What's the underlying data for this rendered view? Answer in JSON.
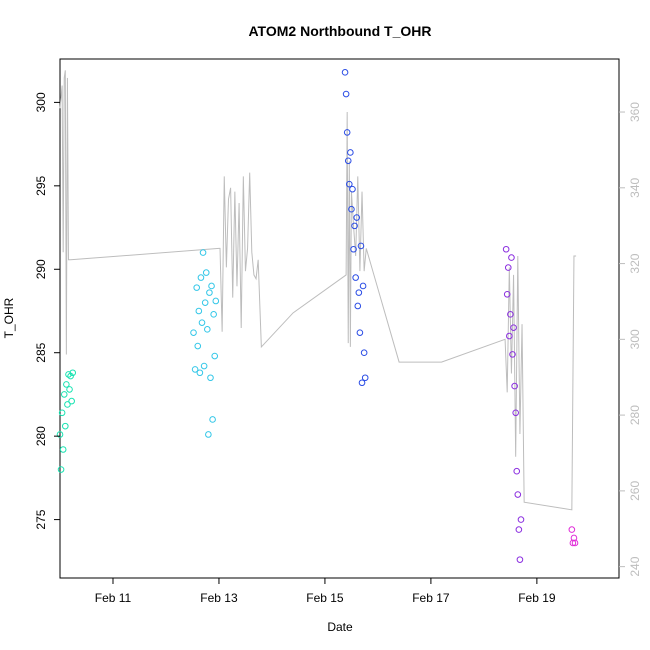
{
  "chart_data": {
    "type": "scatter",
    "title": "ATOM2 Northbound T_OHR",
    "xlabel": "Date",
    "ylabel": "T_OHR",
    "y2label": "",
    "xlim": [
      10.0,
      20.55
    ],
    "ylim": [
      271.5,
      302.6
    ],
    "y2lim": [
      237.0,
      374.0
    ],
    "x_ticks": [
      {
        "value": 11,
        "label": "Feb 11"
      },
      {
        "value": 13,
        "label": "Feb 13"
      },
      {
        "value": 15,
        "label": "Feb 15"
      },
      {
        "value": 17,
        "label": "Feb 17"
      },
      {
        "value": 19,
        "label": "Feb 19"
      }
    ],
    "y_ticks": [
      275,
      280,
      285,
      290,
      295,
      300
    ],
    "y2_ticks": [
      240,
      260,
      280,
      300,
      320,
      340,
      360
    ],
    "x_unit": "day of February",
    "grid": false,
    "legend": "none",
    "colors": {
      "seg1": "#19e3b2",
      "seg2": "#34c7e8",
      "seg3": "#2b4de5",
      "seg4": "#8b2fe0",
      "seg5": "#e02bd8",
      "line": "#bdbdbd",
      "axis": "#000000",
      "axis_right": "#bdbdbd"
    },
    "series": [
      {
        "color_key": "seg1",
        "x": [
          10.0,
          10.02,
          10.04,
          10.06,
          10.08,
          10.1,
          10.12,
          10.14,
          10.16,
          10.18,
          10.2,
          10.22,
          10.24
        ],
        "y": [
          280.1,
          278.0,
          281.4,
          279.2,
          282.5,
          280.6,
          283.1,
          281.9,
          283.7,
          282.8,
          283.6,
          282.1,
          283.8
        ]
      },
      {
        "color_key": "seg2",
        "x": [
          12.52,
          12.55,
          12.58,
          12.6,
          12.62,
          12.64,
          12.66,
          12.68,
          12.7,
          12.72,
          12.74,
          12.76,
          12.78,
          12.8,
          12.82,
          12.84,
          12.86,
          12.88,
          12.9,
          12.92,
          12.94
        ],
        "y": [
          286.2,
          284.0,
          288.9,
          285.4,
          287.5,
          283.8,
          289.5,
          286.8,
          291.0,
          284.2,
          288.0,
          289.8,
          286.4,
          280.1,
          288.6,
          283.5,
          289.0,
          281.0,
          287.3,
          284.8,
          288.1
        ]
      },
      {
        "color_key": "seg3",
        "x": [
          15.38,
          15.4,
          15.42,
          15.44,
          15.46,
          15.48,
          15.5,
          15.52,
          15.54,
          15.56,
          15.58,
          15.6,
          15.62,
          15.64,
          15.66,
          15.68,
          15.7,
          15.72,
          15.74,
          15.76
        ],
        "y": [
          301.8,
          300.5,
          298.2,
          296.5,
          295.1,
          297.0,
          293.6,
          294.8,
          291.2,
          292.6,
          289.5,
          293.1,
          287.8,
          288.6,
          286.2,
          291.4,
          283.2,
          289.0,
          285.0,
          283.5
        ]
      },
      {
        "color_key": "seg4",
        "x": [
          18.42,
          18.44,
          18.46,
          18.48,
          18.5,
          18.52,
          18.54,
          18.56,
          18.58,
          18.6,
          18.62,
          18.64,
          18.66,
          18.68,
          18.7
        ],
        "y": [
          291.2,
          288.5,
          290.1,
          286.0,
          287.3,
          290.7,
          284.9,
          286.5,
          283.0,
          281.4,
          277.9,
          276.5,
          274.4,
          272.6,
          275.0
        ]
      },
      {
        "color_key": "seg5",
        "x": [
          19.66,
          19.68,
          19.7,
          19.72
        ],
        "y": [
          274.4,
          273.6,
          273.9,
          273.6
        ]
      }
    ],
    "line_series": {
      "axis": "right",
      "x": [
        10.0,
        10.04,
        10.06,
        10.08,
        10.1,
        10.12,
        10.14,
        10.16,
        10.2,
        13.0,
        13.02,
        13.06,
        13.1,
        13.14,
        13.18,
        13.22,
        13.26,
        13.3,
        13.34,
        13.38,
        13.42,
        13.46,
        13.5,
        13.54,
        13.58,
        13.62,
        13.66,
        13.7,
        13.74,
        13.8,
        14.4,
        15.4,
        15.42,
        15.44,
        15.46,
        15.48,
        15.5,
        15.54,
        15.58,
        15.62,
        15.66,
        15.7,
        15.74,
        15.78,
        16.4,
        17.2,
        18.4,
        18.44,
        18.48,
        18.52,
        18.56,
        18.6,
        18.64,
        18.68,
        18.72,
        18.76,
        19.66,
        19.7,
        19.74
      ],
      "y": [
        361.0,
        367.0,
        323.0,
        369.0,
        371.0,
        296.0,
        369.0,
        321.0,
        321.0,
        324.0,
        324.0,
        302.0,
        343.0,
        319.0,
        337.0,
        340.0,
        311.0,
        339.0,
        314.0,
        336.0,
        303.0,
        343.0,
        318.0,
        324.0,
        344.0,
        323.0,
        317.0,
        316.0,
        321.0,
        298.0,
        307.0,
        317.0,
        360.0,
        299.0,
        347.0,
        298.0,
        339.0,
        330.0,
        322.0,
        343.0,
        318.0,
        339.0,
        318.0,
        324.0,
        294.0,
        294.0,
        300.0,
        286.0,
        319.0,
        291.0,
        317.0,
        269.0,
        322.0,
        275.0,
        304.0,
        257.0,
        255.0,
        322.0,
        322.0
      ]
    }
  }
}
